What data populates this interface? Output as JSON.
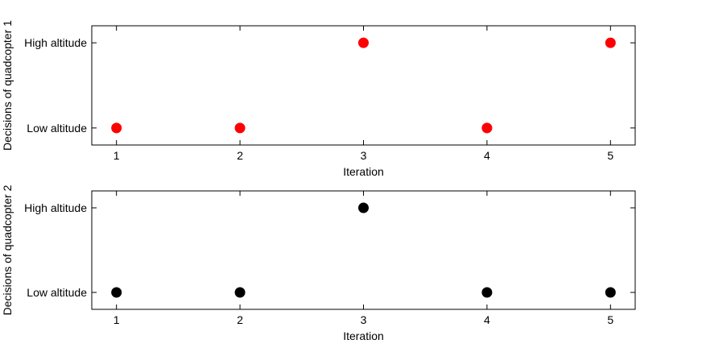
{
  "chart_data": [
    {
      "type": "scatter",
      "xlabel": "Iteration",
      "ylabel": "Decisions of quadcopter 1",
      "xticks": [
        1,
        2,
        3,
        4,
        5
      ],
      "yticks": [
        "Low altitude",
        "High altitude"
      ],
      "xlim": [
        0.8,
        5.2
      ],
      "ylim": [
        -0.2,
        1.2
      ],
      "series": [
        {
          "color": "#ff0000",
          "x": [
            1,
            2,
            3,
            4,
            5
          ],
          "y": [
            "Low altitude",
            "Low altitude",
            "High altitude",
            "Low altitude",
            "High altitude"
          ]
        }
      ]
    },
    {
      "type": "scatter",
      "xlabel": "Iteration",
      "ylabel": "Decisions of quadcopter 2",
      "xticks": [
        1,
        2,
        3,
        4,
        5
      ],
      "yticks": [
        "Low altitude",
        "High altitude"
      ],
      "xlim": [
        0.8,
        5.2
      ],
      "ylim": [
        -0.2,
        1.2
      ],
      "series": [
        {
          "color": "#000000",
          "x": [
            1,
            2,
            3,
            4,
            5
          ],
          "y": [
            "Low altitude",
            "Low altitude",
            "High altitude",
            "Low altitude",
            "Low altitude"
          ]
        }
      ]
    }
  ]
}
